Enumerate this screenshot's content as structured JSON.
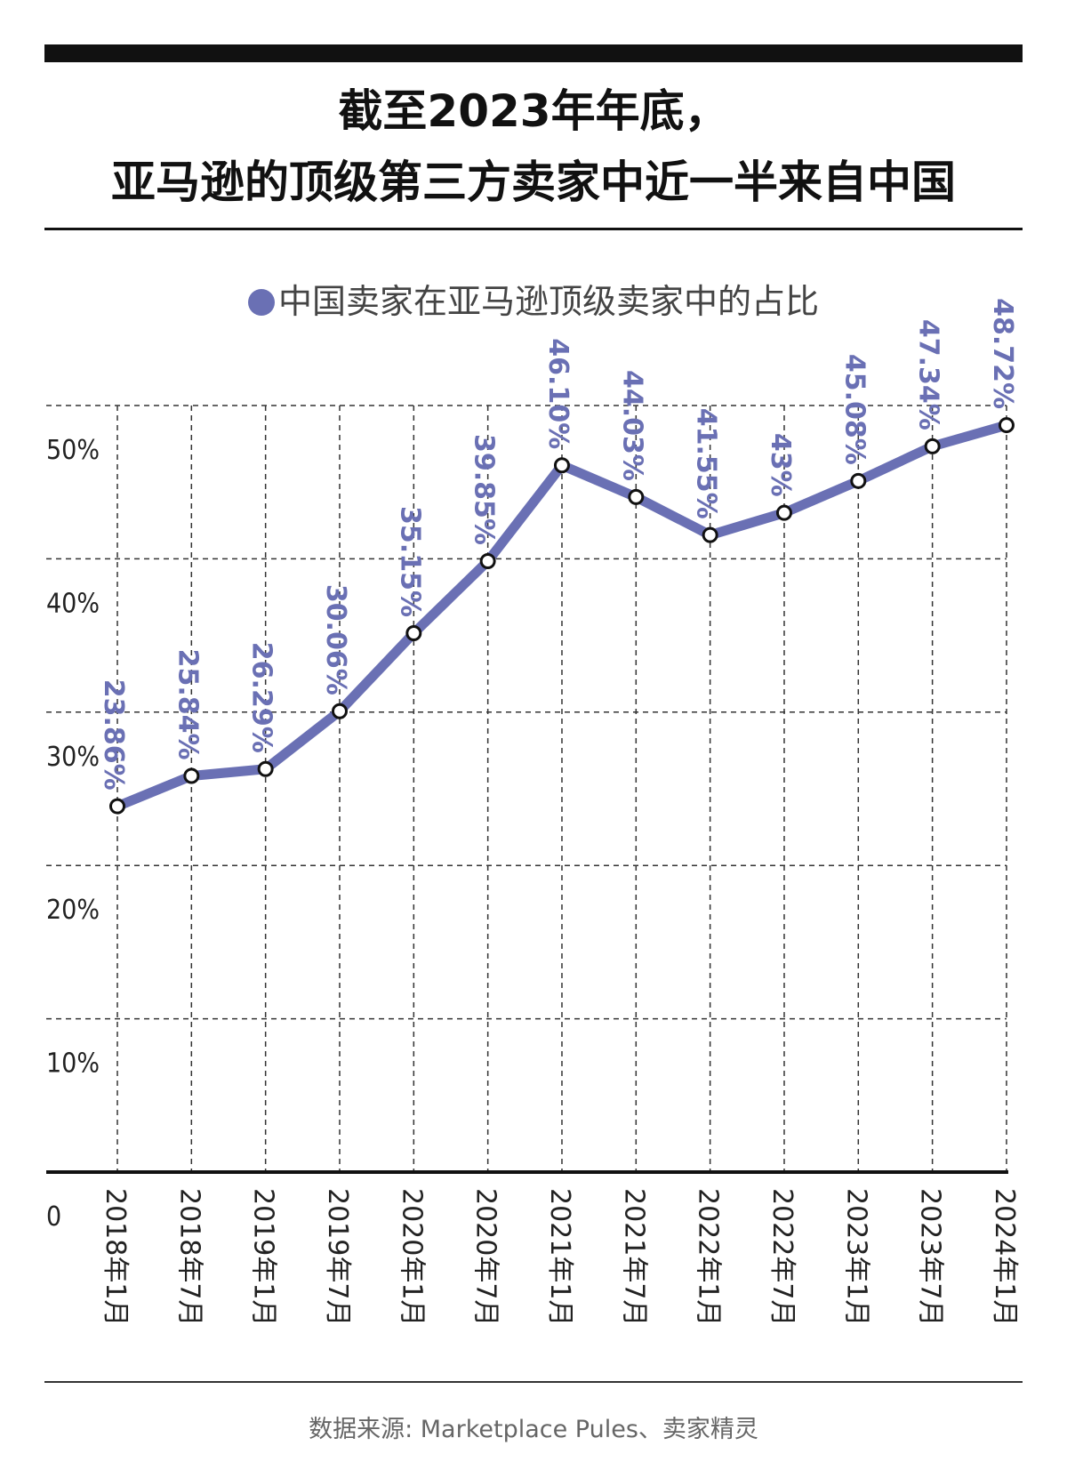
{
  "title": {
    "line1": "截至2023年年底，",
    "line2": "亚马逊的顶级第三方卖家中近一半来自中国"
  },
  "source": "数据来源: Marketplace Pules、卖家精灵",
  "colors": {
    "series": "#6a70b4",
    "text": "#1a1a1a",
    "grid": "#333333"
  },
  "chart_data": {
    "type": "line",
    "categories": [
      "2018年1月",
      "2018年7月",
      "2019年1月",
      "2019年7月",
      "2020年1月",
      "2020年7月",
      "2021年1月",
      "2021年7月",
      "2022年1月",
      "2022年7月",
      "2023年1月",
      "2023年7月",
      "2024年1月"
    ],
    "series": [
      {
        "name": "中国卖家在亚马逊顶级卖家中的占比",
        "values": [
          23.86,
          25.84,
          26.29,
          30.06,
          35.15,
          39.85,
          46.1,
          44.03,
          41.55,
          43.0,
          45.08,
          47.34,
          48.72
        ],
        "labels": [
          "23.86%",
          "25.84%",
          "26.29%",
          "30.06%",
          "35.15%",
          "39.85%",
          "46.10%",
          "44.03%",
          "41.55%",
          "43%",
          "45.08%",
          "47.34%",
          "48.72%"
        ]
      }
    ],
    "y_ticks": [
      "0",
      "10%",
      "20%",
      "30%",
      "40%",
      "50%"
    ],
    "ylim": [
      0,
      50
    ],
    "grid": true,
    "legend": "top-center"
  }
}
